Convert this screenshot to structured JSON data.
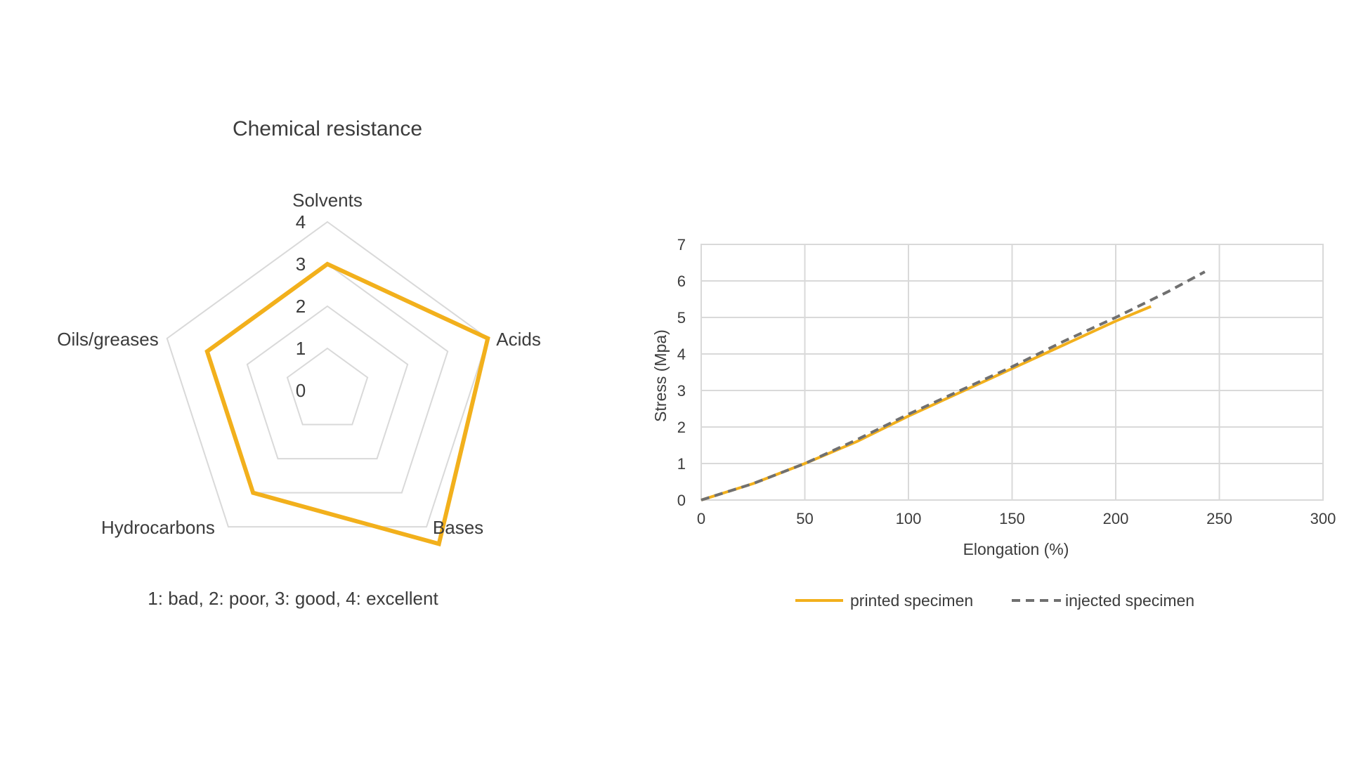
{
  "chart_data": [
    {
      "type": "radar",
      "title": "Chemical resistance",
      "categories": [
        "Solvents",
        "Acids",
        "Bases",
        "Hydrocarbons",
        "Oils/greases"
      ],
      "values": [
        3,
        4,
        4.5,
        3,
        3
      ],
      "rlim": [
        0,
        4
      ],
      "scale_ticks": [
        "0",
        "1",
        "2",
        "3",
        "4"
      ],
      "color": "#F2B01C",
      "note": "1: bad, 2: poor, 3: good, 4: excellent"
    },
    {
      "type": "line",
      "title": "",
      "xlabel": "Elongation (%)",
      "ylabel": "Stress (Mpa)",
      "xlim": [
        0,
        300
      ],
      "ylim": [
        0,
        7
      ],
      "x_ticks": [
        "0",
        "50",
        "100",
        "150",
        "200",
        "250",
        "300"
      ],
      "y_ticks": [
        "0",
        "1",
        "2",
        "3",
        "4",
        "5",
        "6",
        "7"
      ],
      "grid": true,
      "legend_position": "bottom",
      "series": [
        {
          "name": "printed specimen",
          "color": "#F2B01C",
          "style": "solid",
          "x": [
            0,
            25,
            50,
            75,
            100,
            125,
            150,
            175,
            200,
            217
          ],
          "y": [
            0,
            0.45,
            1.0,
            1.6,
            2.3,
            2.95,
            3.6,
            4.25,
            4.9,
            5.3
          ]
        },
        {
          "name": "injected specimen",
          "color": "#707070",
          "style": "dashed",
          "x": [
            0,
            25,
            50,
            75,
            100,
            125,
            150,
            175,
            200,
            225,
            243
          ],
          "y": [
            0,
            0.45,
            1.0,
            1.65,
            2.35,
            3.0,
            3.65,
            4.35,
            5.0,
            5.7,
            6.25
          ]
        }
      ]
    }
  ]
}
